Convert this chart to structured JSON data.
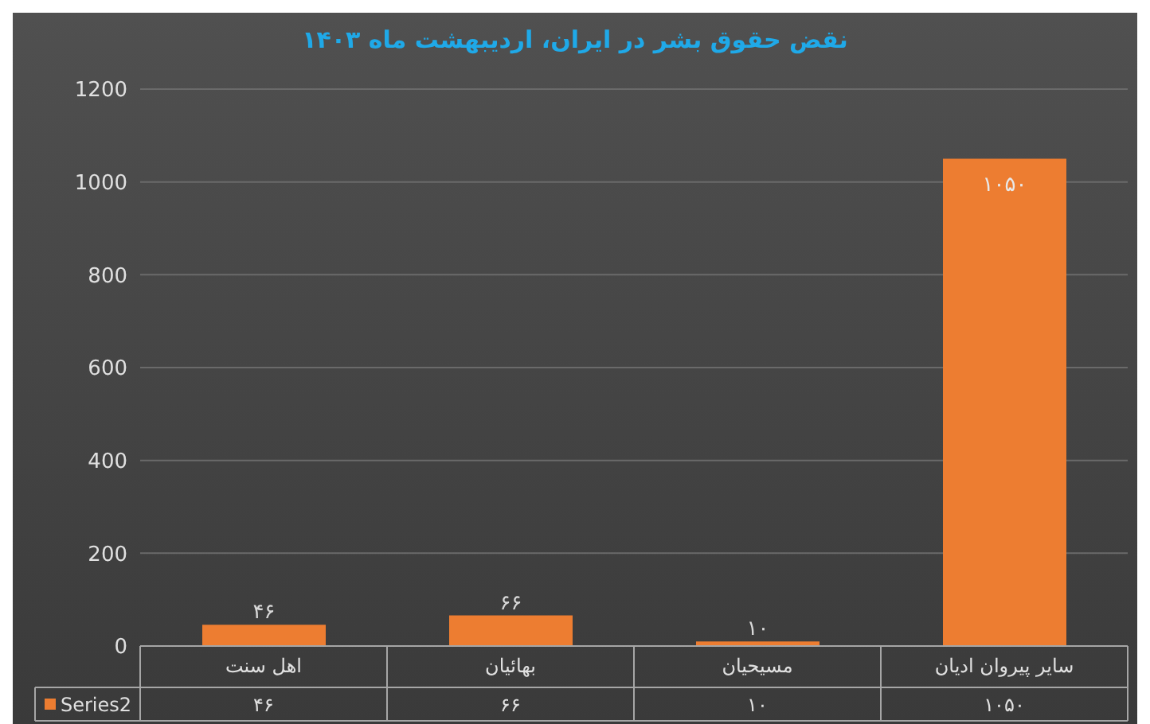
{
  "chart_data": {
    "type": "bar",
    "title": "نقض حقوق بشر در ایران، اردیبهشت ماه ۱۴۰۳",
    "categories": [
      "اهل سنت",
      "بهائیان",
      "مسیحیان",
      "سایر پیروان ادیان"
    ],
    "series": [
      {
        "name": "Series2",
        "color": "#ed7d31",
        "values": [
          46,
          66,
          10,
          1050
        ],
        "value_labels": [
          "۴۶",
          "۶۶",
          "۱۰",
          "۱۰۵۰"
        ]
      }
    ],
    "ylim": [
      0,
      1200
    ],
    "yticks": [
      0,
      200,
      400,
      600,
      800,
      1000,
      1200
    ],
    "grid": "y",
    "legend": "bottom left"
  }
}
